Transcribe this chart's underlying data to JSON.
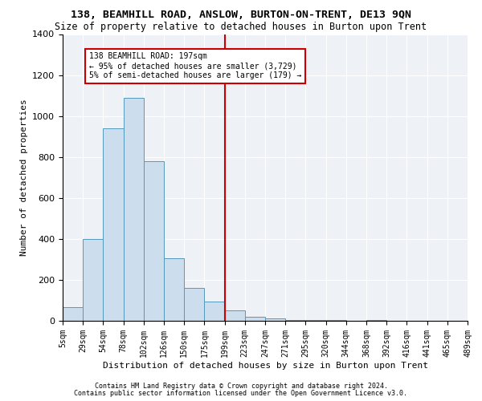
{
  "title": "138, BEAMHILL ROAD, ANSLOW, BURTON-ON-TRENT, DE13 9QN",
  "subtitle": "Size of property relative to detached houses in Burton upon Trent",
  "xlabel": "Distribution of detached houses by size in Burton upon Trent",
  "ylabel": "Number of detached properties",
  "footnote1": "Contains HM Land Registry data © Crown copyright and database right 2024.",
  "footnote2": "Contains public sector information licensed under the Open Government Licence v3.0.",
  "bar_color": "#ccdded",
  "bar_edge_color": "#5599bb",
  "vline_color": "#cc0000",
  "vline_bin_index": 8,
  "annotation_text": "138 BEAMHILL ROAD: 197sqm\n← 95% of detached houses are smaller (3,729)\n5% of semi-detached houses are larger (179) →",
  "annotation_box_color": "#cc0000",
  "bin_counts": [
    65,
    400,
    940,
    1090,
    780,
    305,
    160,
    95,
    50,
    20,
    10,
    5,
    5,
    5,
    0,
    5,
    0,
    0,
    0,
    0
  ],
  "tick_labels": [
    "5sqm",
    "29sqm",
    "54sqm",
    "78sqm",
    "102sqm",
    "126sqm",
    "150sqm",
    "175sqm",
    "199sqm",
    "223sqm",
    "247sqm",
    "271sqm",
    "295sqm",
    "320sqm",
    "344sqm",
    "368sqm",
    "392sqm",
    "416sqm",
    "441sqm",
    "465sqm",
    "489sqm"
  ],
  "ylim": [
    0,
    1400
  ],
  "background_color": "#eef2f7",
  "grid_color": "#ffffff",
  "title_fontsize": 9.5,
  "subtitle_fontsize": 8.5,
  "xlabel_fontsize": 8,
  "ylabel_fontsize": 8,
  "tick_fontsize": 7,
  "ytick_fontsize": 8
}
